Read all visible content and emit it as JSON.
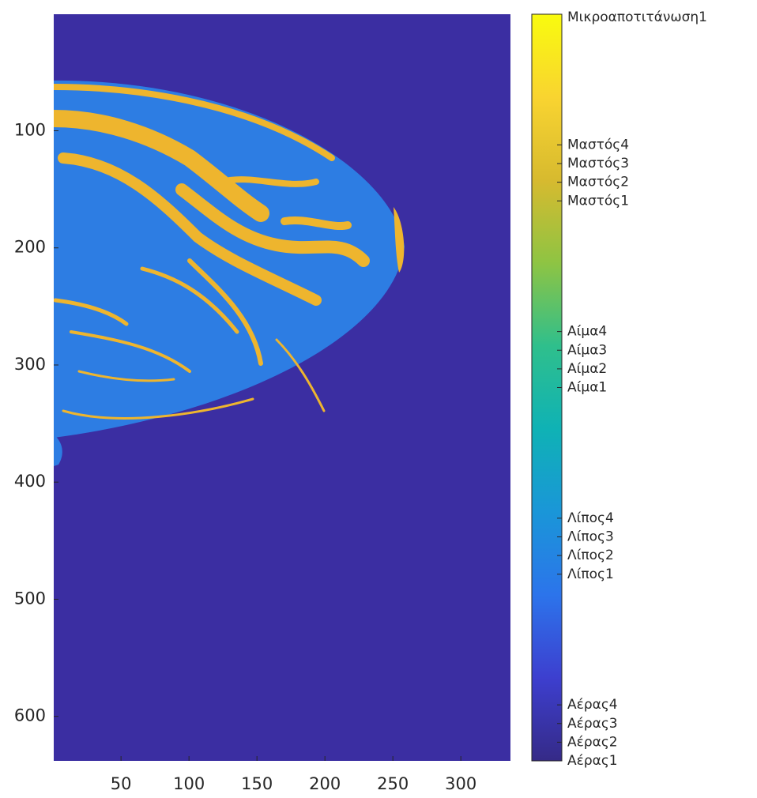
{
  "chart_data": {
    "type": "image",
    "xlim": [
      0.5,
      336.5
    ],
    "ylim": [
      0.5,
      638
    ],
    "ydir": "reverse",
    "xticks": [
      50,
      100,
      150,
      200,
      250,
      300
    ],
    "yticks": [
      100,
      200,
      300,
      400,
      500,
      600
    ],
    "colorbar": {
      "clim": [
        0,
        100
      ],
      "colormap": [
        "#352a87",
        "#3d3fcf",
        "#2c74eb",
        "#1a96d8",
        "#0fb2b5",
        "#2fbf8c",
        "#8ec443",
        "#d7ba2f",
        "#f9d430",
        "#f9fb0e"
      ],
      "ticks": [
        {
          "value": 0,
          "label": "Αέρας1"
        },
        {
          "value": 2.5,
          "label": "Αέρας2"
        },
        {
          "value": 5,
          "label": "Αέρας3"
        },
        {
          "value": 7.5,
          "label": "Αέρας4"
        },
        {
          "value": 25,
          "label": "Λίπος1"
        },
        {
          "value": 27.5,
          "label": "Λίπος2"
        },
        {
          "value": 30,
          "label": "Λίπος3"
        },
        {
          "value": 32.5,
          "label": "Λίπος4"
        },
        {
          "value": 50,
          "label": "Αίμα1"
        },
        {
          "value": 52.5,
          "label": "Αίμα2"
        },
        {
          "value": 55,
          "label": "Αίμα3"
        },
        {
          "value": 57.5,
          "label": "Αίμα4"
        },
        {
          "value": 75,
          "label": "Μαστός1"
        },
        {
          "value": 77.5,
          "label": "Μαστός2"
        },
        {
          "value": 80,
          "label": "Μαστός3"
        },
        {
          "value": 82.5,
          "label": "Μαστός4"
        },
        {
          "value": 100,
          "label": "Μικροαποτιτάνωση1"
        }
      ]
    }
  }
}
